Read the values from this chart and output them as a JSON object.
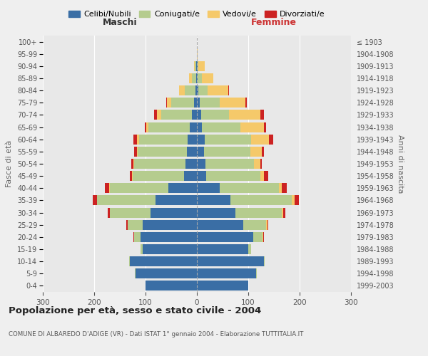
{
  "age_groups": [
    "0-4",
    "5-9",
    "10-14",
    "15-19",
    "20-24",
    "25-29",
    "30-34",
    "35-39",
    "40-44",
    "45-49",
    "50-54",
    "55-59",
    "60-64",
    "65-69",
    "70-74",
    "75-79",
    "80-84",
    "85-89",
    "90-94",
    "95-99",
    "100+"
  ],
  "birth_years": [
    "1999-2003",
    "1994-1998",
    "1989-1993",
    "1984-1988",
    "1979-1983",
    "1974-1978",
    "1969-1973",
    "1964-1968",
    "1959-1963",
    "1954-1958",
    "1949-1953",
    "1944-1948",
    "1939-1943",
    "1934-1938",
    "1929-1933",
    "1924-1928",
    "1919-1923",
    "1914-1918",
    "1909-1913",
    "1904-1908",
    "≤ 1903"
  ],
  "maschi": {
    "celibi": [
      100,
      120,
      130,
      105,
      110,
      105,
      90,
      80,
      55,
      25,
      22,
      20,
      18,
      14,
      10,
      5,
      3,
      2,
      1,
      0,
      0
    ],
    "coniugati": [
      0,
      1,
      2,
      5,
      12,
      30,
      80,
      115,
      115,
      100,
      100,
      95,
      95,
      80,
      60,
      45,
      20,
      8,
      3,
      0,
      0
    ],
    "vedovi": [
      0,
      0,
      0,
      0,
      0,
      0,
      0,
      0,
      1,
      1,
      2,
      2,
      3,
      5,
      8,
      8,
      12,
      5,
      2,
      0,
      0
    ],
    "divorziati": [
      0,
      0,
      0,
      0,
      1,
      2,
      3,
      8,
      8,
      5,
      4,
      5,
      8,
      3,
      5,
      2,
      0,
      0,
      0,
      0,
      0
    ]
  },
  "femmine": {
    "nubili": [
      100,
      115,
      130,
      100,
      110,
      90,
      75,
      65,
      45,
      18,
      16,
      14,
      15,
      10,
      8,
      5,
      3,
      2,
      1,
      0,
      0
    ],
    "coniugate": [
      0,
      1,
      2,
      5,
      18,
      45,
      90,
      120,
      115,
      105,
      95,
      90,
      90,
      75,
      55,
      40,
      18,
      8,
      2,
      0,
      0
    ],
    "vedove": [
      0,
      0,
      0,
      0,
      1,
      2,
      3,
      5,
      5,
      8,
      12,
      22,
      35,
      45,
      60,
      50,
      40,
      22,
      12,
      1,
      0
    ],
    "divorziate": [
      0,
      0,
      0,
      0,
      1,
      2,
      4,
      8,
      10,
      8,
      4,
      5,
      8,
      5,
      8,
      2,
      2,
      0,
      0,
      0,
      0
    ]
  },
  "colors": {
    "celibi": "#3a6ea5",
    "coniugati": "#b5cc8e",
    "vedovi": "#f5c96a",
    "divorziati": "#cc2222"
  },
  "title": "Popolazione per età, sesso e stato civile - 2004",
  "subtitle": "COMUNE DI ALBAREDO D'ADIGE (VR) - Dati ISTAT 1° gennaio 2004 - Elaborazione TUTTITALIA.IT",
  "xlabel_maschi": "Maschi",
  "xlabel_femmine": "Femmine",
  "ylabel_left": "Fasce di età",
  "ylabel_right": "Anni di nascita",
  "xlim": 300,
  "background_color": "#efefef",
  "plot_bg": "#e8e8e8"
}
